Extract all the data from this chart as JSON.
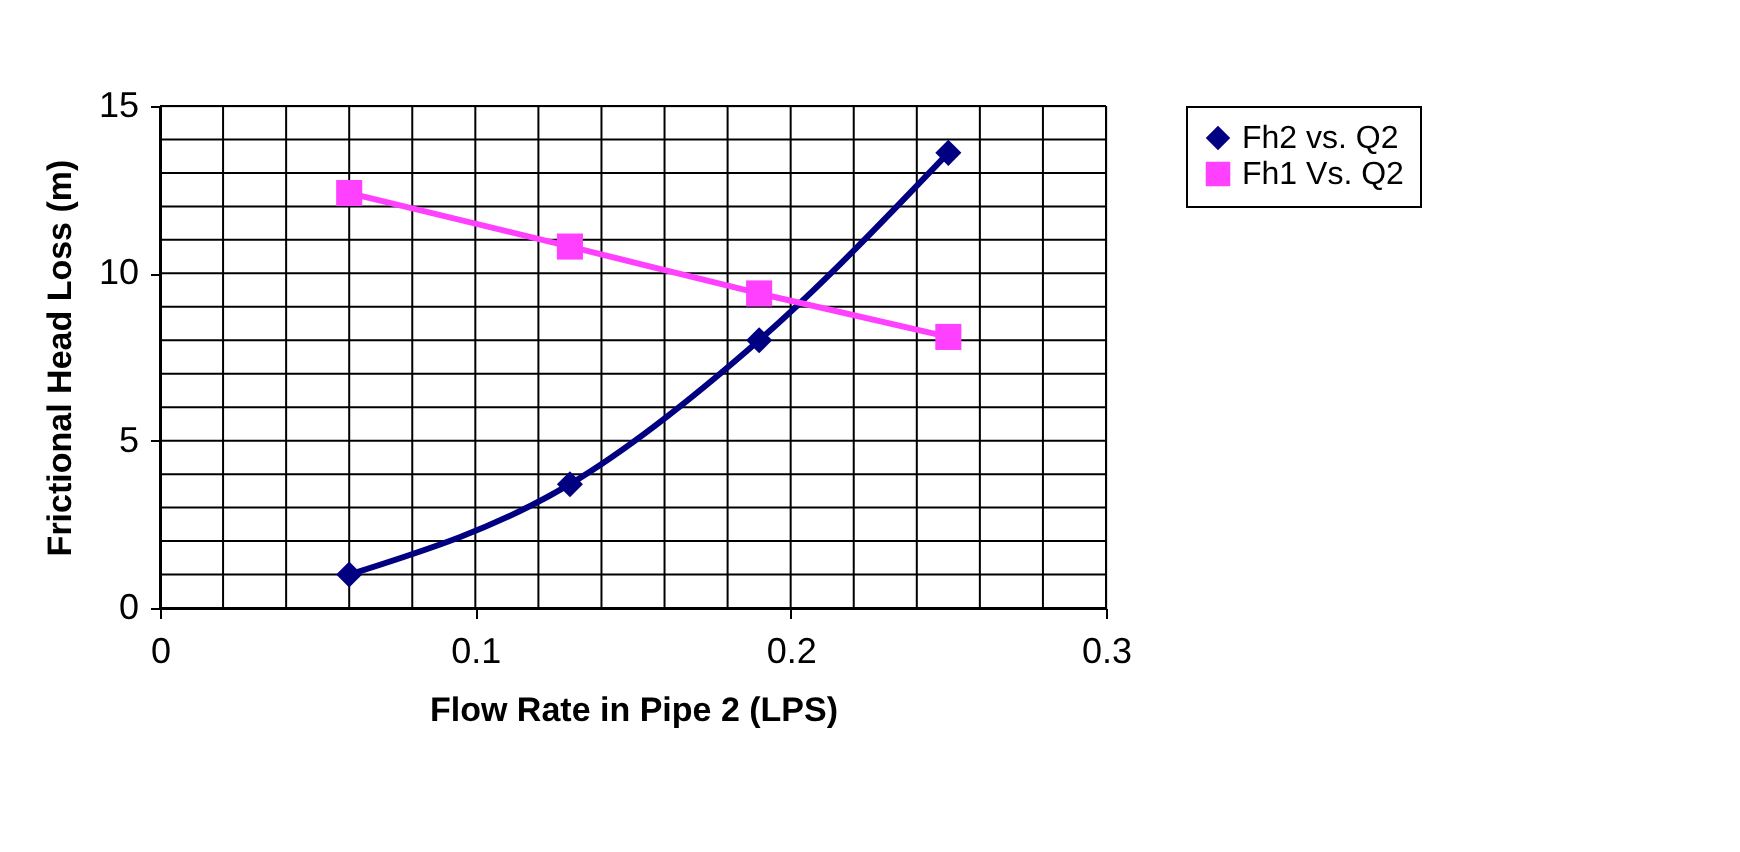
{
  "chart_data": {
    "type": "line",
    "xlabel": "Flow Rate in Pipe 2 (LPS)",
    "ylabel": "Frictional Head Loss (m)",
    "xlim": [
      0,
      0.3
    ],
    "ylim": [
      0,
      15
    ],
    "xticks": [
      0,
      {
        "value": 0.02,
        "label": null
      },
      {
        "value": 0.04,
        "label": null
      },
      {
        "value": 0.06,
        "label": null
      },
      {
        "value": 0.08,
        "label": null
      },
      0.1,
      {
        "value": 0.12,
        "label": null
      },
      {
        "value": 0.14,
        "label": null
      },
      {
        "value": 0.16,
        "label": null
      },
      {
        "value": 0.18,
        "label": null
      },
      0.2,
      {
        "value": 0.22,
        "label": null
      },
      {
        "value": 0.24,
        "label": null
      },
      {
        "value": 0.26,
        "label": null
      },
      {
        "value": 0.28,
        "label": null
      },
      0.3
    ],
    "yticks": [
      0,
      {
        "value": 1,
        "label": null
      },
      {
        "value": 2,
        "label": null
      },
      {
        "value": 3,
        "label": null
      },
      {
        "value": 4,
        "label": null
      },
      5,
      {
        "value": 6,
        "label": null
      },
      {
        "value": 7,
        "label": null
      },
      {
        "value": 8,
        "label": null
      },
      {
        "value": 9,
        "label": null
      },
      10,
      {
        "value": 11,
        "label": null
      },
      {
        "value": 12,
        "label": null
      },
      {
        "value": 13,
        "label": null
      },
      {
        "value": 14,
        "label": null
      },
      15
    ],
    "x": [
      0.06,
      0.13,
      0.19,
      0.25
    ],
    "series": [
      {
        "name": "Fh2 vs. Q2",
        "color": "#000080",
        "marker": "diamond",
        "values": [
          1.0,
          3.7,
          8.0,
          13.6
        ]
      },
      {
        "name": "Fh1 Vs. Q2",
        "color": "#ff40ff",
        "marker": "square",
        "values": [
          12.4,
          10.8,
          9.4,
          8.1
        ]
      }
    ],
    "grid": true,
    "legend": "right",
    "line_style": "solid"
  }
}
